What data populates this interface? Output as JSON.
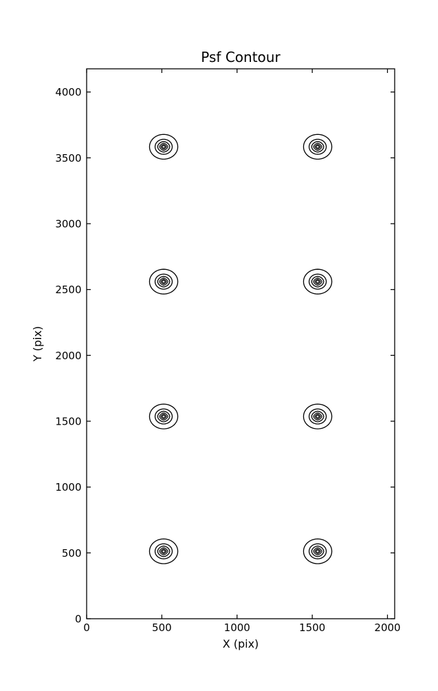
{
  "figure": {
    "background_color": "#ffffff"
  },
  "chart_data": {
    "type": "contour",
    "title": "Psf Contour",
    "xlabel": "X (pix)",
    "ylabel": "Y (pix)",
    "xlim": [
      0,
      2048
    ],
    "ylim": [
      0,
      4176
    ],
    "xticks": [
      0,
      500,
      1000,
      1500,
      2000
    ],
    "yticks": [
      0,
      500,
      1000,
      1500,
      2000,
      2500,
      3000,
      3500,
      4000
    ],
    "grid": false,
    "legend": false,
    "line_color": "#000000",
    "background_color": "#ffffff",
    "tick_direction": "in",
    "ticks_mirrored_all_sides": true,
    "psf_centers": [
      {
        "x": 512,
        "y": 512
      },
      {
        "x": 1536,
        "y": 512
      },
      {
        "x": 512,
        "y": 1536
      },
      {
        "x": 1536,
        "y": 1536
      },
      {
        "x": 512,
        "y": 2560
      },
      {
        "x": 1536,
        "y": 2560
      },
      {
        "x": 512,
        "y": 3584
      },
      {
        "x": 1536,
        "y": 3584
      }
    ],
    "contour_rings": [
      {
        "radius_pix": 94,
        "shape_exponent": 2.0
      },
      {
        "radius_pix": 57,
        "shape_exponent": 2.0
      },
      {
        "radius_pix": 40,
        "shape_exponent": 1.75
      },
      {
        "radius_pix": 28,
        "shape_exponent": 1.45
      },
      {
        "radius_pix": 19,
        "shape_exponent": 1.25
      },
      {
        "radius_pix": 10.5,
        "shape_exponent": 1.2
      }
    ]
  }
}
